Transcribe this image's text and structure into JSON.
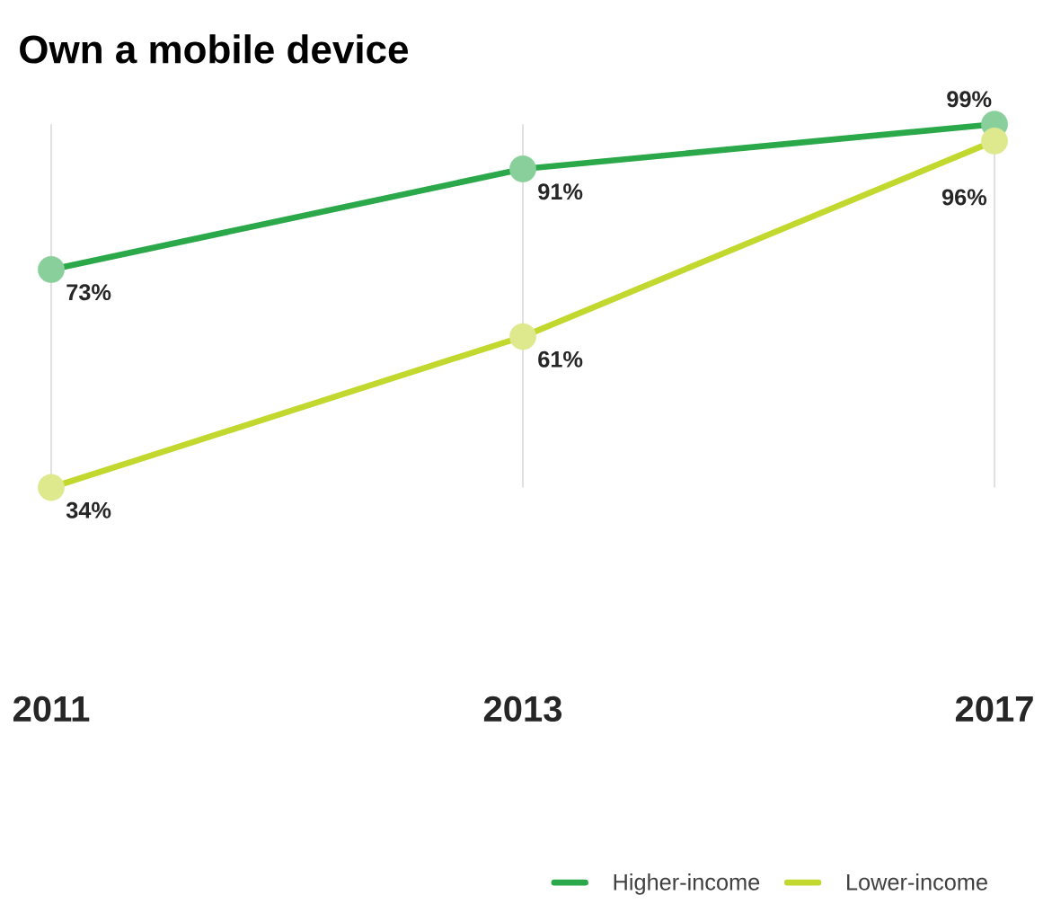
{
  "chart_data": {
    "type": "line",
    "title": "Own a mobile device",
    "categories": [
      "2011",
      "2013",
      "2017"
    ],
    "series": [
      {
        "name": "Higher-income",
        "color": "#2aa84a",
        "values": [
          73,
          91,
          99
        ],
        "value_labels": [
          "73%",
          "91%",
          "99%"
        ]
      },
      {
        "name": "Lower-income",
        "color": "#c2d82e",
        "values": [
          34,
          61,
          96
        ],
        "value_labels": [
          "34%",
          "61%",
          "96%"
        ]
      }
    ],
    "tick_labels": "x",
    "grid": "x",
    "marker": "circle",
    "line_style": "solid",
    "legend": "bottom right"
  }
}
